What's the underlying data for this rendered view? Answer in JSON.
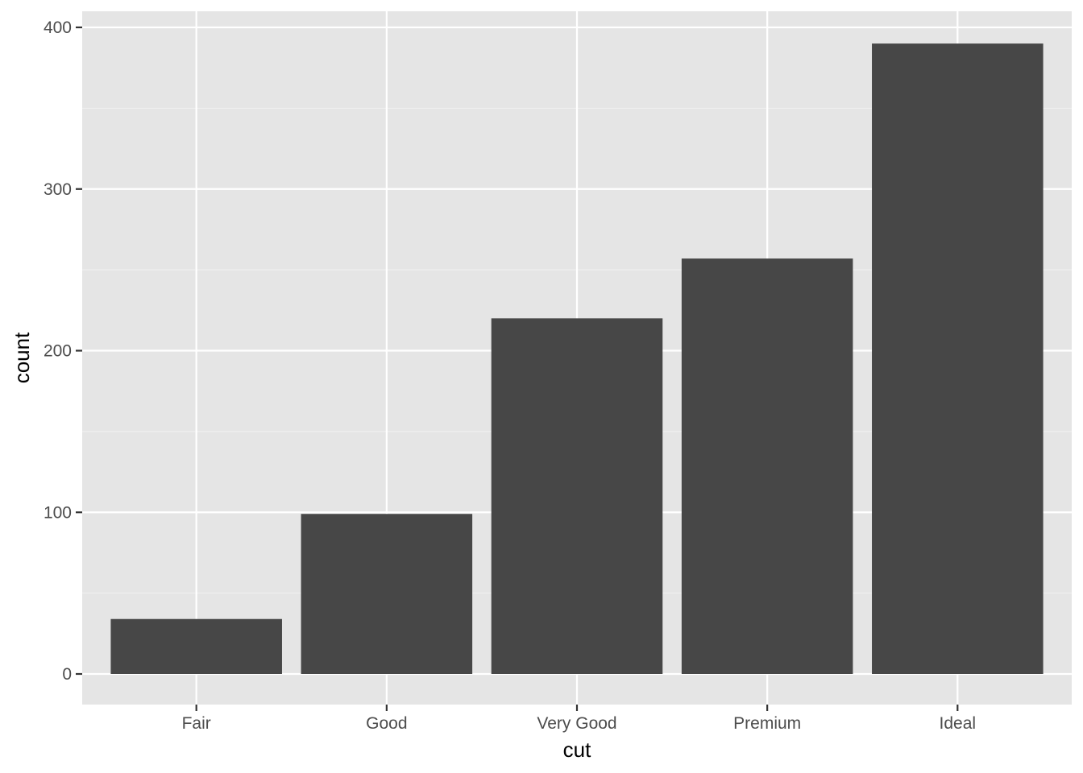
{
  "chart_data": {
    "type": "bar",
    "title": "",
    "xlabel": "cut",
    "ylabel": "count",
    "categories": [
      "Fair",
      "Good",
      "Very Good",
      "Premium",
      "Ideal"
    ],
    "values": [
      34,
      99,
      220,
      257,
      390
    ],
    "ylim": [
      0,
      400
    ],
    "yticks": [
      0,
      100,
      200,
      300,
      400
    ],
    "ytick_labels": [
      "0",
      "100",
      "200",
      "300",
      "400"
    ],
    "grid": true,
    "legend": "none",
    "colors": {
      "panel_background": "#e5e5e5",
      "grid_major": "#ffffff",
      "grid_minor": "#f2f2f2",
      "bar_fill": "#474747",
      "tick_mark": "#333333",
      "tick_label": "#4d4d4d",
      "axis_title": "#000000"
    }
  }
}
